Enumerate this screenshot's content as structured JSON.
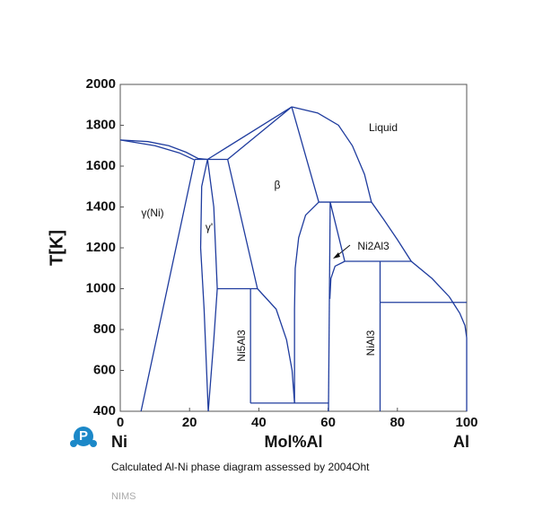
{
  "chart_data": {
    "type": "line",
    "xlabel": "Mol%Al",
    "ylabel": "T[K]",
    "x_end_labels": [
      "Ni",
      "Al"
    ],
    "caption": "Calculated Al-Ni phase diagram assessed by 2004Oht",
    "source": "NIMS",
    "color": "#1f3c9e",
    "xlim": [
      0,
      100
    ],
    "xticks": [
      0,
      20,
      40,
      60,
      80,
      100
    ],
    "ylim": [
      400,
      2000
    ],
    "yticks": [
      400,
      600,
      800,
      1000,
      1200,
      1400,
      1600,
      1800,
      2000
    ],
    "annotations": [
      "Liquid",
      "β",
      "γ(Ni)",
      "γ'",
      "Ni5Al3",
      "NiAl3",
      "Ni2Al3"
    ],
    "curves": [
      {
        "x": [
          0,
          8,
          14,
          19,
          22.5,
          25.2
        ],
        "values": [
          1728,
          1720,
          1700,
          1668,
          1637,
          1633
        ]
      },
      {
        "x": [
          0,
          10,
          17,
          21.5
        ],
        "values": [
          1728,
          1700,
          1665,
          1630
        ]
      },
      {
        "x": [
          21.5,
          31
        ],
        "values": [
          1633,
          1633
        ]
      },
      {
        "x": [
          25.2,
          49.5
        ],
        "values": [
          1633,
          1890
        ]
      },
      {
        "x": [
          31,
          49.5
        ],
        "values": [
          1633,
          1890
        ]
      },
      {
        "x": [
          49.5,
          57,
          63,
          67,
          70.5,
          72.5,
          76,
          80,
          84,
          90,
          95,
          98,
          99.5,
          100
        ],
        "values": [
          1890,
          1860,
          1800,
          1700,
          1560,
          1424,
          1340,
          1240,
          1134,
          1050,
          960,
          880,
          820,
          760
        ]
      },
      {
        "x": [
          100,
          100
        ],
        "values": [
          760,
          400
        ]
      },
      {
        "x": [
          49.5,
          57.3
        ],
        "values": [
          1890,
          1424
        ]
      },
      {
        "x": [
          57.3,
          72.5
        ],
        "values": [
          1424,
          1424
        ]
      },
      {
        "x": [
          50.3,
          50.3,
          50.5,
          51.5,
          53.5,
          57.3
        ],
        "values": [
          440,
          900,
          1100,
          1250,
          1360,
          1424
        ]
      },
      {
        "x": [
          31,
          39.6
        ],
        "values": [
          1633,
          1000
        ]
      },
      {
        "x": [
          21.5,
          6
        ],
        "values": [
          1630,
          400
        ]
      },
      {
        "x": [
          25.2,
          23.5,
          23.2,
          24.2,
          25.4
        ],
        "values": [
          1633,
          1500,
          1200,
          900,
          400
        ]
      },
      {
        "x": [
          25.2,
          27,
          28,
          27,
          25.4
        ],
        "values": [
          1633,
          1400,
          1000,
          750,
          400
        ]
      },
      {
        "x": [
          28,
          39.6
        ],
        "values": [
          1000,
          1000
        ]
      },
      {
        "x": [
          37.6,
          37.6
        ],
        "values": [
          1000,
          440
        ]
      },
      {
        "x": [
          39.6,
          45,
          48,
          49.6,
          50.3
        ],
        "values": [
          1000,
          900,
          750,
          600,
          440
        ]
      },
      {
        "x": [
          37.6,
          60.1
        ],
        "values": [
          440,
          440
        ]
      },
      {
        "x": [
          60.6,
          60.1
        ],
        "values": [
          1424,
          400
        ]
      },
      {
        "x": [
          60.6,
          64.8
        ],
        "values": [
          1424,
          1134
        ]
      },
      {
        "x": [
          64.8,
          62,
          60.8,
          60.5
        ],
        "values": [
          1134,
          1110,
          1050,
          950
        ]
      },
      {
        "x": [
          64.8,
          84
        ],
        "values": [
          1134,
          1134
        ]
      },
      {
        "x": [
          75,
          75
        ],
        "values": [
          1134,
          400
        ]
      },
      {
        "x": [
          75,
          100
        ],
        "values": [
          933,
          933
        ]
      }
    ]
  }
}
